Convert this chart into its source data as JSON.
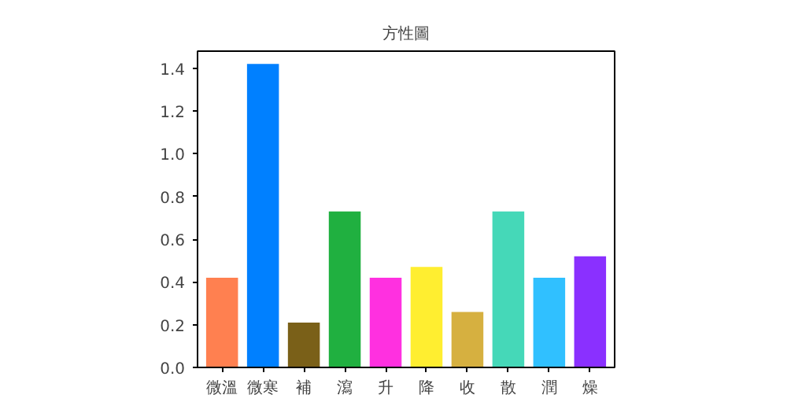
{
  "chart_data": {
    "type": "bar",
    "title": "方性圖",
    "categories": [
      "微溫",
      "微寒",
      "補",
      "瀉",
      "升",
      "降",
      "收",
      "散",
      "潤",
      "燥"
    ],
    "values": [
      0.42,
      1.42,
      0.21,
      0.73,
      0.42,
      0.47,
      0.26,
      0.73,
      0.42,
      0.52
    ],
    "colors": [
      "#ff8050",
      "#0080ff",
      "#7a6018",
      "#20b040",
      "#ff30e0",
      "#ffee30",
      "#d6b040",
      "#45d8b8",
      "#30c0ff",
      "#8a30ff"
    ],
    "ylim": [
      0,
      1.48
    ],
    "yticks": [
      {
        "value": 0,
        "label": "0.0"
      },
      0.2,
      0.4,
      0.6,
      0.8,
      {
        "value": 1,
        "label": "1.0"
      },
      1.2,
      1.4
    ],
    "grid": false
  }
}
